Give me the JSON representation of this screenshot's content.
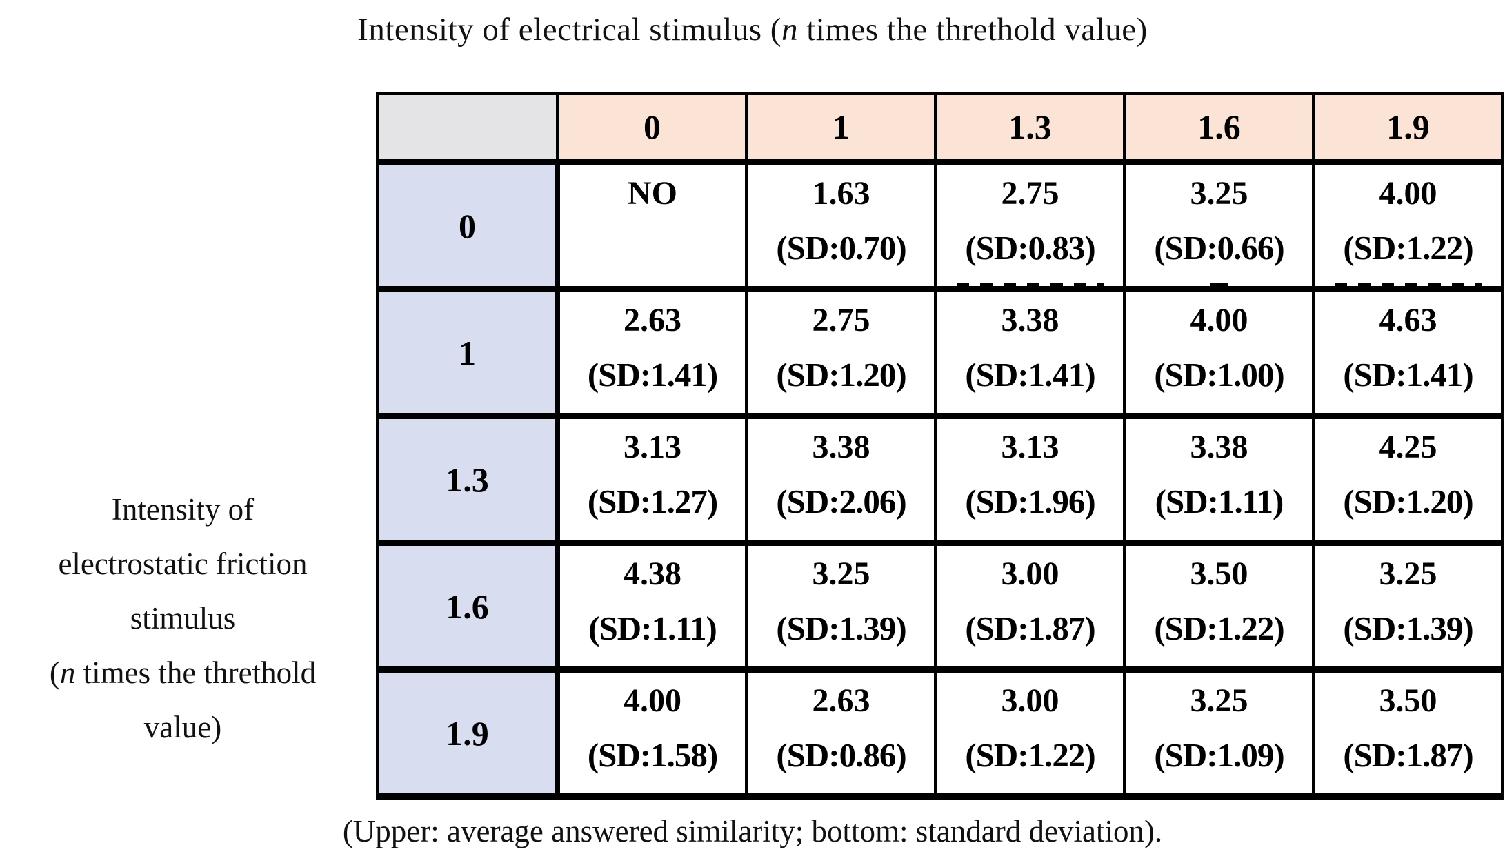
{
  "title": {
    "pre": "Intensity of electrical stimulus (",
    "italic": "n",
    "post": " times the threthold value)"
  },
  "side_label": {
    "line1": "Intensity of",
    "line2": "electrostatic friction",
    "line3": "stimulus",
    "line4_pre": "(",
    "line4_italic": "n",
    "line4_post": " times the threthold",
    "line5": "value)"
  },
  "caption": "(Upper: average answered similarity; bottom: standard deviation).",
  "colors": {
    "column_header_bg": "#FBE3D5",
    "row_header_bg": "#D8DDF0",
    "corner_bg": "#E4E4E6",
    "cell_bg": "#FFFFFF",
    "border": "#000000"
  },
  "table": {
    "corner_label": "",
    "columns": [
      "0",
      "1",
      "1.3",
      "1.6",
      "1.9"
    ],
    "rows": [
      {
        "header": "0",
        "cells": [
          {
            "value": "NO",
            "sd": ""
          },
          {
            "value": "1.63",
            "sd": "(SD:0.70)"
          },
          {
            "value": "2.75",
            "sd": "(SD:0.83)",
            "artifact": "dashes"
          },
          {
            "value": "3.25",
            "sd": "(SD:0.66)",
            "artifact": "speck"
          },
          {
            "value": "4.00",
            "sd": "(SD:1.22)",
            "artifact": "dashes"
          }
        ]
      },
      {
        "header": "1",
        "cells": [
          {
            "value": "2.63",
            "sd": "(SD:1.41)"
          },
          {
            "value": "2.75",
            "sd": "(SD:1.20)"
          },
          {
            "value": "3.38",
            "sd": "(SD:1.41)"
          },
          {
            "value": "4.00",
            "sd": "(SD:1.00)"
          },
          {
            "value": "4.63",
            "sd": "(SD:1.41)"
          }
        ]
      },
      {
        "header": "1.3",
        "cells": [
          {
            "value": "3.13",
            "sd": "(SD:1.27)"
          },
          {
            "value": "3.38",
            "sd": "(SD:2.06)"
          },
          {
            "value": "3.13",
            "sd": "(SD:1.96)"
          },
          {
            "value": "3.38",
            "sd": "(SD:1.11)"
          },
          {
            "value": "4.25",
            "sd": "(SD:1.20)"
          }
        ]
      },
      {
        "header": "1.6",
        "cells": [
          {
            "value": "4.38",
            "sd": "(SD:1.11)"
          },
          {
            "value": "3.25",
            "sd": "(SD:1.39)"
          },
          {
            "value": "3.00",
            "sd": "(SD:1.87)"
          },
          {
            "value": "3.50",
            "sd": "(SD:1.22)"
          },
          {
            "value": "3.25",
            "sd": "(SD:1.39)"
          }
        ]
      },
      {
        "header": "1.9",
        "cells": [
          {
            "value": "4.00",
            "sd": "(SD:1.58)"
          },
          {
            "value": "2.63",
            "sd": "(SD:0.86)"
          },
          {
            "value": "3.00",
            "sd": "(SD:1.22)"
          },
          {
            "value": "3.25",
            "sd": "(SD:1.09)"
          },
          {
            "value": "3.50",
            "sd": "(SD:1.87)"
          }
        ]
      }
    ]
  },
  "chart_data": {
    "type": "table",
    "title": "Intensity of electrical stimulus (n times the threthold value)",
    "row_axis_label": "Intensity of electrostatic friction stimulus (n times the threthold value)",
    "columns": [
      0,
      1,
      1.3,
      1.6,
      1.9
    ],
    "row_headers": [
      0,
      1,
      1.3,
      1.6,
      1.9
    ],
    "mean_similarity": [
      [
        null,
        1.63,
        2.75,
        3.25,
        4.0
      ],
      [
        2.63,
        2.75,
        3.38,
        4.0,
        4.63
      ],
      [
        3.13,
        3.38,
        3.13,
        3.38,
        4.25
      ],
      [
        4.38,
        3.25,
        3.0,
        3.5,
        3.25
      ],
      [
        4.0,
        2.63,
        3.0,
        3.25,
        3.5
      ]
    ],
    "standard_deviation": [
      [
        null,
        0.7,
        0.83,
        0.66,
        1.22
      ],
      [
        1.41,
        1.2,
        1.41,
        1.0,
        1.41
      ],
      [
        1.27,
        2.06,
        1.96,
        1.11,
        1.2
      ],
      [
        1.11,
        1.39,
        1.87,
        1.22,
        1.39
      ],
      [
        1.58,
        0.86,
        1.22,
        1.09,
        1.87
      ]
    ],
    "no_stimulus_cell": "NO",
    "note": "(Upper: average answered similarity; bottom: standard deviation)."
  }
}
